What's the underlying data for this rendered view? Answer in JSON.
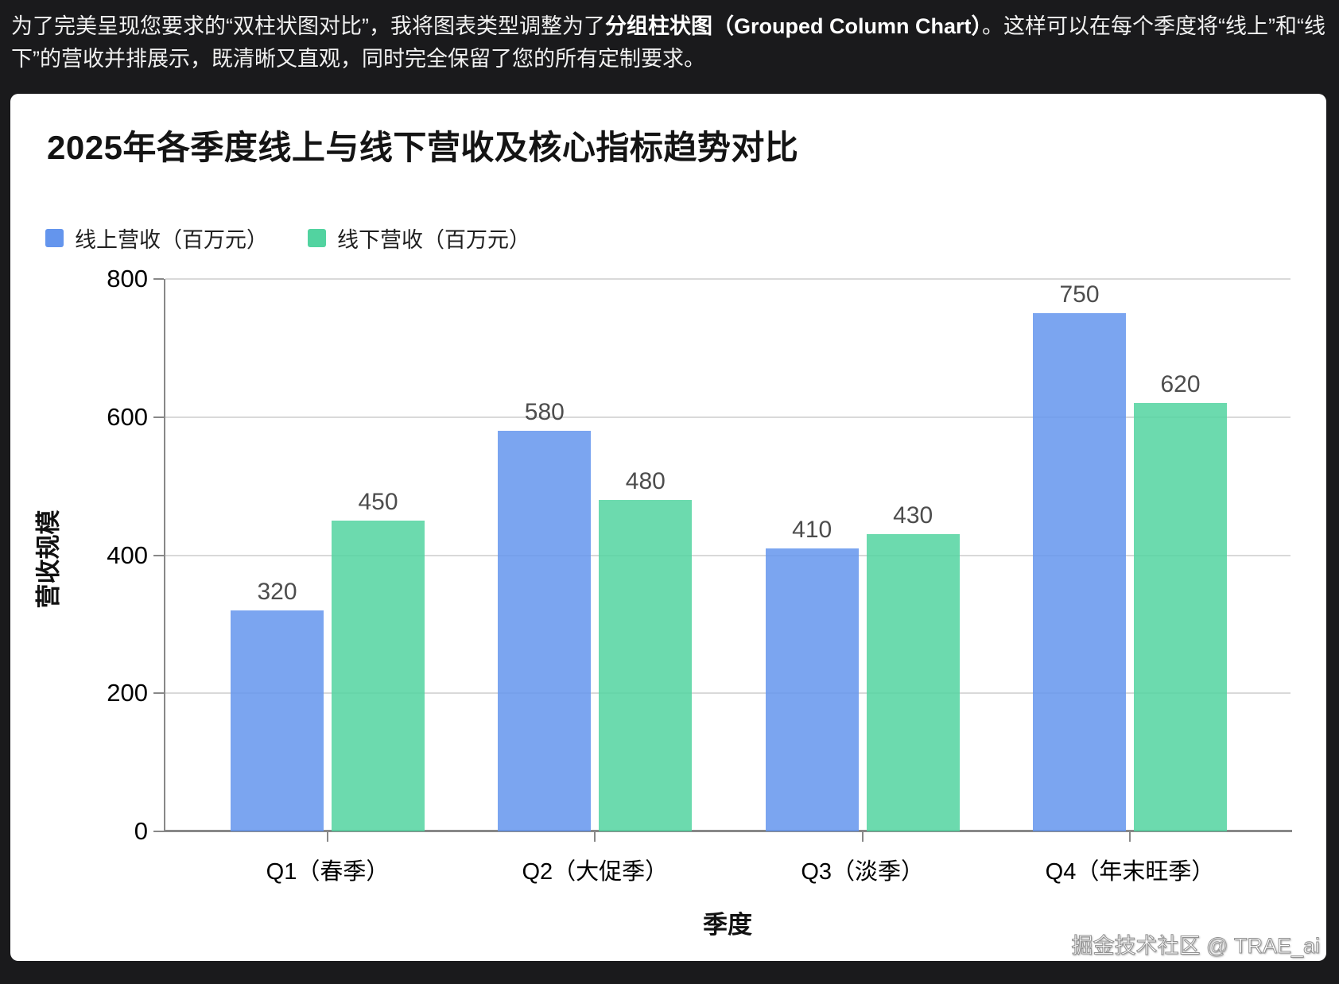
{
  "page": {
    "background": "#1a1a1c"
  },
  "intro": {
    "pre": "为了完美呈现您要求的“双柱状图对比”，我将图表类型调整为了",
    "bold": "分组柱状图（Grouped Column Chart）",
    "post": "。这样可以在每个季度将“线上”和“线下”的营收并排展示，既清晰又直观，同时完全保留了您的所有定制要求。"
  },
  "chart_data": {
    "type": "bar",
    "title": "2025年各季度线上与线下营收及核心指标趋势对比",
    "categories": [
      "Q1（春季）",
      "Q2（大促季）",
      "Q3（淡季）",
      "Q4（年末旺季）"
    ],
    "series": [
      {
        "name": "线上营收（百万元）",
        "color": "#6495ed",
        "values": [
          320,
          580,
          410,
          750
        ]
      },
      {
        "name": "线下营收（百万元）",
        "color": "#52d3a0",
        "values": [
          450,
          480,
          430,
          620
        ]
      }
    ],
    "xlabel": "季度",
    "ylabel": "营收规模",
    "ylim": [
      0,
      800
    ],
    "yticks": [
      0,
      200,
      400,
      600,
      800
    ],
    "grid": true,
    "legend_position": "top-left",
    "bar_opacity": 0.85,
    "value_labels": true,
    "colors": {
      "grid": "#d9d9d9",
      "axis": "#888888",
      "tick_label": "#000000",
      "value_label": "#4d4d4d",
      "title": "#141414"
    }
  },
  "watermark": {
    "text": "掘金技术社区 @ TRAE_ai"
  }
}
